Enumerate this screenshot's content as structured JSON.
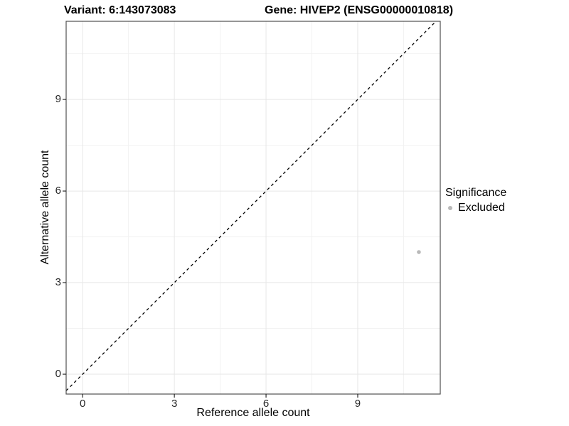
{
  "title": {
    "variant": "Variant: 6:143073083",
    "gene": "Gene: HIVEP2 (ENSG00000010818)"
  },
  "axes": {
    "x_label": "Reference allele count",
    "y_label": "Alternative allele count"
  },
  "legend": {
    "title": "Significance",
    "items": [
      {
        "label": "Excluded",
        "color": "#b9b9b9"
      }
    ]
  },
  "colors": {
    "background": "#ffffff",
    "panel_background": "#ffffff",
    "panel_border": "#4f4f4f",
    "grid_major": "#e6e6e6",
    "grid_minor": "#f2f2f2",
    "tick_mark": "#1a1a1a",
    "tick_text": "#262626",
    "reference_line": "#000000",
    "point": "#b9b9b9"
  },
  "chart_data": {
    "type": "scatter",
    "title": "Variant: 6:143073083   Gene: HIVEP2 (ENSG00000010818)",
    "xlabel": "Reference allele count",
    "ylabel": "Alternative allele count",
    "xlim": [
      -0.54,
      11.7
    ],
    "ylim": [
      -0.65,
      11.56
    ],
    "x_ticks": [
      0,
      3,
      6,
      9
    ],
    "y_ticks": [
      0,
      3,
      6,
      9
    ],
    "x_minor_ticks": [
      1.5,
      4.5,
      7.5,
      10.5
    ],
    "y_minor_ticks": [
      1.5,
      4.5,
      7.5,
      10.5
    ],
    "grid": true,
    "legend_position": "right",
    "series": [
      {
        "name": "Excluded",
        "color": "#b9b9b9",
        "point_radius": 2.8,
        "points": [
          {
            "x": 11,
            "y": 4
          }
        ]
      }
    ],
    "reference_line": {
      "slope": 1,
      "intercept": 0,
      "style": "dashed",
      "color": "#000000"
    }
  }
}
